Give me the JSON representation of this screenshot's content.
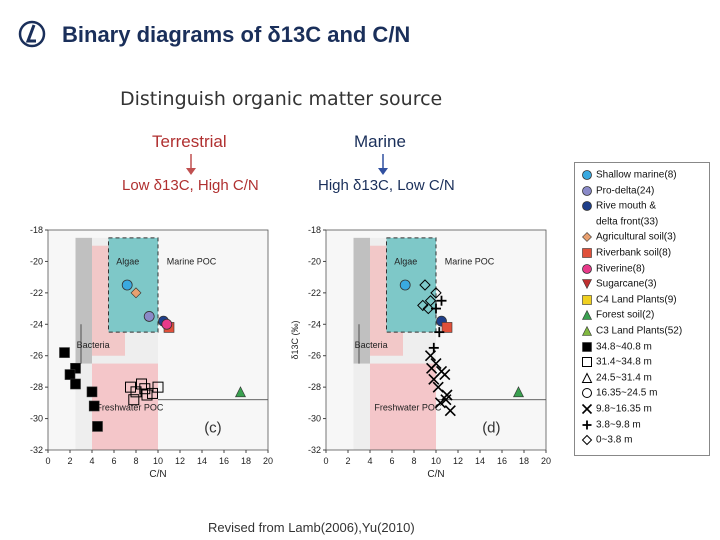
{
  "header": {
    "title": "Binary diagrams of δ13C and C/N",
    "subtitle": "Distinguish organic matter source",
    "source_left_label": "Terrestrial",
    "source_left_desc": "Low δ13C, High C/N",
    "source_right_label": "Marine",
    "source_right_desc": "High δ13C, Low C/N"
  },
  "caption": "Revised from Lamb(2006),Yu(2010)",
  "colors": {
    "algae_fill": "#7ec8c8",
    "freshwater_fill": "#f4c6c9",
    "bacteria_fill": "#c0c0c0",
    "marine_poc_fill": "#f0d8d8"
  },
  "chart_data": [
    {
      "type": "scatter",
      "panel": "(c)",
      "xlabel": "C/N",
      "ylabel": "",
      "xlim": [
        0,
        20
      ],
      "ylim": [
        -32,
        -18
      ],
      "x_ticks": [
        "0",
        "2",
        "4",
        "6",
        "8",
        "10",
        "12",
        "14",
        "16",
        "18",
        "20"
      ],
      "y_ticks": [
        "-18",
        "-20",
        "-22",
        "-24",
        "-26",
        "-28",
        "-30",
        "-32"
      ],
      "region_labels": [
        "Algae",
        "Marine POC",
        "Bacteria",
        "Freshwater POC"
      ],
      "series": [
        {
          "name": "Shallow marine(8)",
          "x": [
            7.2
          ],
          "y": [
            -21.5
          ]
        },
        {
          "name": "Pro-delta(24)",
          "x": [
            9.2
          ],
          "y": [
            -23.5
          ]
        },
        {
          "name": "Rive mouth & delta front(33)",
          "x": [
            10.5
          ],
          "y": [
            -23.8
          ]
        },
        {
          "name": "Agricultural soil(3)",
          "x": [
            8.0
          ],
          "y": [
            -22.0
          ]
        },
        {
          "name": "Riverbank soil(8)",
          "x": [
            11.0
          ],
          "y": [
            -24.2
          ]
        },
        {
          "name": "Riverine(8)",
          "x": [
            10.8
          ],
          "y": [
            -24.0
          ]
        },
        {
          "name": "Forest soil(2)",
          "x": [
            17.5
          ],
          "y": [
            -28.3
          ]
        },
        {
          "name": "34.8~40.8 m",
          "x": [
            1.5,
            2.5,
            2.0,
            4.0,
            2.5,
            4.2,
            4.5
          ],
          "y": [
            -25.8,
            -26.8,
            -27.2,
            -28.3,
            -27.8,
            -29.2,
            -30.5
          ]
        },
        {
          "name": "31.4~34.8 m",
          "x": [
            7.5,
            8.0,
            8.5,
            9.0,
            7.8,
            8.8,
            9.5,
            10.0
          ],
          "y": [
            -28.0,
            -28.3,
            -27.8,
            -28.5,
            -28.8,
            -28.1,
            -28.4,
            -28.0
          ]
        }
      ]
    },
    {
      "type": "scatter",
      "panel": "(d)",
      "xlabel": "C/N",
      "ylabel": "δ13C (‰)",
      "xlim": [
        0,
        20
      ],
      "ylim": [
        -32,
        -18
      ],
      "x_ticks": [
        "0",
        "2",
        "4",
        "6",
        "8",
        "10",
        "12",
        "14",
        "16",
        "18",
        "20"
      ],
      "y_ticks": [
        "-18",
        "-20",
        "-22",
        "-24",
        "-26",
        "-28",
        "-30",
        "-32"
      ],
      "region_labels": [
        "Algae",
        "Marine POC",
        "Bacteria",
        "Freshwater POC"
      ],
      "series": [
        {
          "name": "Shallow marine(8)",
          "x": [
            7.2
          ],
          "y": [
            -21.5
          ]
        },
        {
          "name": "Rive mouth & delta front(33)",
          "x": [
            10.5
          ],
          "y": [
            -23.8
          ]
        },
        {
          "name": "Riverbank soil(8)",
          "x": [
            11.0
          ],
          "y": [
            -24.2
          ]
        },
        {
          "name": "Forest soil(2)",
          "x": [
            17.5
          ],
          "y": [
            -28.3
          ]
        },
        {
          "name": "9.8~16.35 m",
          "x": [
            9.5,
            10.0,
            10.5,
            9.8,
            10.2,
            10.8,
            11.0,
            9.6,
            10.4,
            10.9,
            11.3
          ],
          "y": [
            -26.0,
            -26.5,
            -27.0,
            -27.5,
            -28.0,
            -27.2,
            -28.5,
            -26.8,
            -29.0,
            -28.8,
            -29.5
          ]
        },
        {
          "name": "3.8~9.8 m",
          "x": [
            10.0,
            10.3,
            9.8,
            10.5
          ],
          "y": [
            -23.0,
            -24.5,
            -25.5,
            -22.5
          ]
        },
        {
          "name": "0~3.8 m",
          "x": [
            9.0,
            9.5,
            10.0,
            9.3,
            8.8
          ],
          "y": [
            -21.5,
            -22.5,
            -22.0,
            -23.0,
            -22.8
          ]
        }
      ]
    }
  ],
  "legend": {
    "items": [
      {
        "label": "Shallow marine(8)",
        "symbol": "circle",
        "color": "#3aa9e0"
      },
      {
        "label": "Pro-delta(24)",
        "symbol": "circle",
        "color": "#8a8ac8"
      },
      {
        "label": "Rive mouth &",
        "symbol": "circle",
        "color": "#1e3f8a"
      },
      {
        "label": "delta front(33)",
        "symbol": "none",
        "color": ""
      },
      {
        "label": "Agricultural soil(3)",
        "symbol": "diamond",
        "color": "#e8a070"
      },
      {
        "label": "Riverbank soil(8)",
        "symbol": "square",
        "color": "#e0503a"
      },
      {
        "label": "Riverine(8)",
        "symbol": "circle",
        "color": "#e83a8a"
      },
      {
        "label": "Sugarcane(3)",
        "symbol": "triangle-down",
        "color": "#c03030"
      },
      {
        "label": "C4 Land Plants(9)",
        "symbol": "square",
        "color": "#f0d020"
      },
      {
        "label": "Forest soil(2)",
        "symbol": "triangle",
        "color": "#3aa050"
      },
      {
        "label": "C3 Land Plants(52)",
        "symbol": "triangle",
        "color": "#80b840"
      },
      {
        "label": "34.8~40.8 m",
        "symbol": "square",
        "color": "#000000"
      },
      {
        "label": "31.4~34.8 m",
        "symbol": "square-open",
        "color": "#000000"
      },
      {
        "label": "24.5~31.4 m",
        "symbol": "triangle-open",
        "color": "#000000"
      },
      {
        "label": "16.35~24.5 m",
        "symbol": "circle-open",
        "color": "#000000"
      },
      {
        "label": "9.8~16.35 m",
        "symbol": "x",
        "color": "#000000"
      },
      {
        "label": "3.8~9.8 m",
        "symbol": "plus",
        "color": "#000000"
      },
      {
        "label": "0~3.8 m",
        "symbol": "diamond-open",
        "color": "#000000"
      }
    ]
  }
}
